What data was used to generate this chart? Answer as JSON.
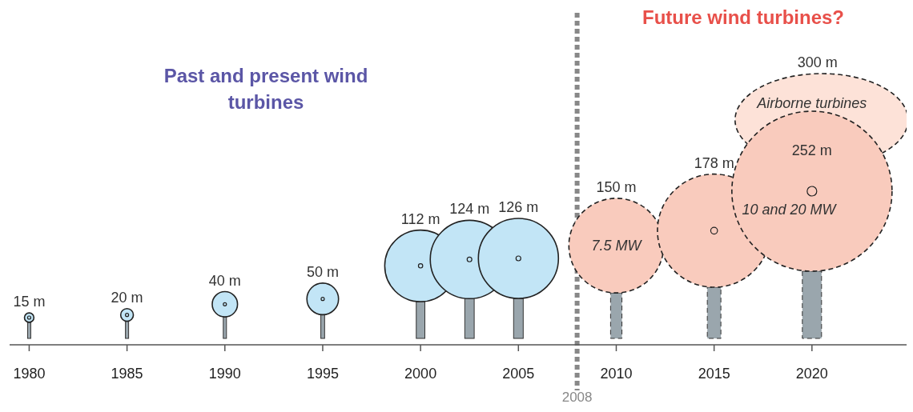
{
  "chart_data": {
    "type": "bubble",
    "xlim": [
      1979,
      2025
    ],
    "xticks": [
      1980,
      1985,
      1990,
      1995,
      2000,
      2005,
      2010,
      2015,
      2020
    ],
    "tick_labels": "x",
    "series": [
      {
        "color": "#c2e5f6",
        "line_style": "solid",
        "x": [
          1980,
          1985,
          1990,
          1995,
          2000,
          2002.5,
          2005
        ],
        "values": [
          15,
          20,
          40,
          50,
          112,
          124,
          126
        ],
        "sizes": [
          0.0035,
          0.0063,
          0.025,
          0.039,
          0.2,
          0.24,
          0.25
        ],
        "value_labels": [
          "15 m",
          "20 m",
          "40 m",
          "50 m",
          "112 m",
          "124 m",
          "126 m"
        ]
      },
      {
        "color": "#f9cbbd",
        "line_style": "dashed",
        "x": [
          2010,
          2015,
          2020
        ],
        "values": [
          150,
          178,
          252
        ],
        "sizes": [
          0.35,
          0.5,
          1
        ],
        "value_labels": [
          "150 m",
          "178 m",
          "252 m"
        ]
      }
    ],
    "ref_lines": [
      {
        "axis": "x",
        "value": 2008,
        "label": "2008",
        "color": "#888888",
        "line_style": "dotted"
      }
    ],
    "annotations": [
      "Past and present wind turbines",
      "Future wind turbines?",
      "10 and 20 MW",
      "300 m",
      "Airborne turbines",
      {
        "text": "7.5 MW",
        "x": 2010,
        "y": 150
      }
    ]
  }
}
